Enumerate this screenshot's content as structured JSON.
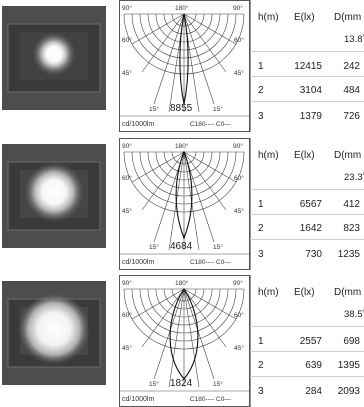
{
  "angle_labels": {
    "top_left": "90°",
    "top_center": "180°",
    "top_right": "90°",
    "mid_left": "60°",
    "mid_right": "60°",
    "low_left": "45°",
    "low_right": "45°",
    "bottom_left": "15°",
    "bottom_right": "15°"
  },
  "chart_footer": {
    "unit": "cd/1000lm",
    "legend": "C180---- C0—"
  },
  "table_headers": {
    "h": "h(m)",
    "e": "E(lx)",
    "d": "D(mm"
  },
  "products": [
    {
      "peak": "8855",
      "beam_angle": "13.8˚",
      "rows": [
        {
          "h": "1",
          "e": "12415",
          "d": "242"
        },
        {
          "h": "2",
          "e": "3104",
          "d": "484"
        },
        {
          "h": "3",
          "e": "1379",
          "d": "726"
        }
      ]
    },
    {
      "peak": "4684",
      "beam_angle": "23.3˚",
      "rows": [
        {
          "h": "1",
          "e": "6567",
          "d": "412"
        },
        {
          "h": "2",
          "e": "1642",
          "d": "823"
        },
        {
          "h": "3",
          "e": "730",
          "d": "1235"
        }
      ]
    },
    {
      "peak": "1824",
      "beam_angle": "38.5˚",
      "rows": [
        {
          "h": "1",
          "e": "2557",
          "d": "698"
        },
        {
          "h": "2",
          "e": "639",
          "d": "1395"
        },
        {
          "h": "3",
          "e": "284",
          "d": "2093"
        }
      ]
    }
  ]
}
